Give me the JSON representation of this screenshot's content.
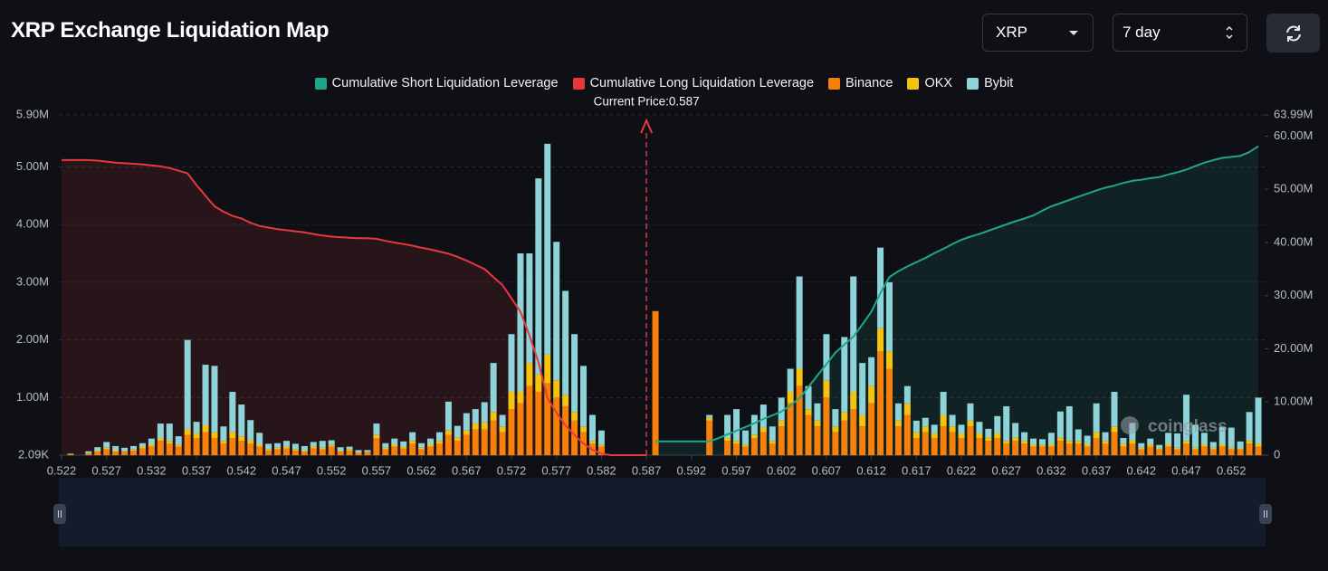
{
  "header": {
    "title": "XRP Exchange Liquidation Map",
    "symbol": "XRP",
    "period": "7 day"
  },
  "watermark": "coinglass",
  "chart_data": {
    "type": "bar",
    "x": [
      0.522,
      0.523,
      0.524,
      0.525,
      0.526,
      0.527,
      0.528,
      0.529,
      0.53,
      0.531,
      0.532,
      0.533,
      0.534,
      0.535,
      0.536,
      0.537,
      0.538,
      0.539,
      0.54,
      0.541,
      0.542,
      0.543,
      0.544,
      0.545,
      0.546,
      0.547,
      0.548,
      0.549,
      0.55,
      0.551,
      0.552,
      0.553,
      0.554,
      0.555,
      0.556,
      0.557,
      0.558,
      0.559,
      0.56,
      0.561,
      0.562,
      0.563,
      0.564,
      0.565,
      0.566,
      0.567,
      0.568,
      0.569,
      0.57,
      0.571,
      0.572,
      0.573,
      0.574,
      0.575,
      0.576,
      0.577,
      0.578,
      0.579,
      0.58,
      0.581,
      0.582,
      0.583,
      0.584,
      0.585,
      0.586,
      0.587,
      0.588,
      0.589,
      0.59,
      0.591,
      0.592,
      0.593,
      0.594,
      0.595,
      0.596,
      0.597,
      0.598,
      0.599,
      0.6,
      0.601,
      0.602,
      0.603,
      0.604,
      0.605,
      0.606,
      0.607,
      0.608,
      0.609,
      0.61,
      0.611,
      0.612,
      0.613,
      0.614,
      0.615,
      0.616,
      0.617,
      0.618,
      0.619,
      0.62,
      0.621,
      0.622,
      0.623,
      0.624,
      0.625,
      0.626,
      0.627,
      0.628,
      0.629,
      0.63,
      0.631,
      0.632,
      0.633,
      0.634,
      0.635,
      0.636,
      0.637,
      0.638,
      0.639,
      0.64,
      0.641,
      0.642,
      0.643,
      0.644,
      0.645,
      0.646,
      0.647,
      0.648,
      0.649,
      0.65,
      0.651,
      0.652,
      0.653,
      0.654,
      0.655
    ],
    "xlim": [
      0.522,
      0.6557
    ],
    "xticks": [
      0.522,
      0.527,
      0.532,
      0.537,
      0.542,
      0.547,
      0.552,
      0.557,
      0.562,
      0.567,
      0.572,
      0.577,
      0.582,
      0.587,
      0.592,
      0.597,
      0.602,
      0.607,
      0.612,
      0.617,
      0.622,
      0.627,
      0.632,
      0.637,
      0.642,
      0.647,
      0.652
    ],
    "ylim": [
      2090,
      5900000
    ],
    "yticks": [
      {
        "value": 2090,
        "label": "2.09K"
      },
      {
        "value": 1000000,
        "label": "1.00M"
      },
      {
        "value": 2000000,
        "label": "2.00M"
      },
      {
        "value": 3000000,
        "label": "3.00M"
      },
      {
        "value": 4000000,
        "label": "4.00M"
      },
      {
        "value": 5000000,
        "label": "5.00M"
      },
      {
        "value": 5900000,
        "label": "5.90M"
      }
    ],
    "y2lim": [
      0,
      63990000
    ],
    "y2ticks": [
      0,
      {
        "value": 10000000,
        "label": "10.00M"
      },
      {
        "value": 20000000,
        "label": "20.00M"
      },
      {
        "value": 30000000,
        "label": "30.00M"
      },
      {
        "value": 40000000,
        "label": "40.00M"
      },
      {
        "value": 50000000,
        "label": "50.00M"
      },
      {
        "value": 60000000,
        "label": "60.00M"
      },
      {
        "value": 63990000,
        "label": "63.99M"
      }
    ],
    "grid": true,
    "annotations": [
      {
        "text": "Current Price:0.587",
        "x": 0.587
      }
    ],
    "series": [
      {
        "name": "Cumulative Short Liquidation Leverage",
        "type": "line",
        "axis": "y2",
        "color": "#1fa58a",
        "values": [
          null,
          null,
          null,
          null,
          null,
          null,
          null,
          null,
          null,
          null,
          null,
          null,
          null,
          null,
          null,
          null,
          null,
          null,
          null,
          null,
          null,
          null,
          null,
          null,
          null,
          null,
          null,
          null,
          null,
          null,
          null,
          null,
          null,
          null,
          null,
          null,
          null,
          null,
          null,
          null,
          null,
          null,
          null,
          null,
          null,
          null,
          null,
          null,
          null,
          null,
          null,
          null,
          null,
          null,
          null,
          null,
          null,
          null,
          null,
          null,
          null,
          null,
          null,
          null,
          null,
          null,
          2600000,
          2600000,
          2600000,
          2600000,
          2600000,
          2600000,
          2600000,
          3200000,
          3900000,
          4600000,
          5300000,
          6000000,
          6800000,
          7500000,
          8200000,
          9400000,
          10700000,
          12800000,
          15000000,
          17100000,
          19300000,
          20800000,
          22300000,
          24600000,
          27000000,
          30500000,
          33500000,
          34600000,
          35500000,
          36300000,
          37100000,
          38000000,
          38800000,
          39700000,
          40500000,
          41100000,
          41600000,
          42200000,
          42800000,
          43400000,
          44000000,
          44500000,
          45100000,
          46000000,
          46800000,
          47400000,
          48000000,
          48600000,
          49200000,
          49800000,
          50300000,
          50700000,
          51200000,
          51600000,
          51800000,
          52100000,
          52300000,
          52800000,
          53200000,
          53700000,
          54400000,
          55000000,
          55500000,
          55900000,
          56100000,
          56300000,
          57000000,
          58100000
        ]
      },
      {
        "name": "Cumulative Long Liquidation Leverage",
        "type": "line",
        "axis": "y2",
        "color": "#e8383d",
        "values": [
          55500000,
          55500000,
          55500000,
          55500000,
          55400000,
          55200000,
          55000000,
          54900000,
          54800000,
          54700000,
          54500000,
          54300000,
          54000000,
          53500000,
          53000000,
          50800000,
          48800000,
          46800000,
          45800000,
          45000000,
          44500000,
          43700000,
          43100000,
          42800000,
          42500000,
          42300000,
          42100000,
          41900000,
          41600000,
          41300000,
          41100000,
          41000000,
          40900000,
          40800000,
          40800000,
          40700000,
          40300000,
          40000000,
          39700000,
          39400000,
          39000000,
          38700000,
          38300000,
          37900000,
          37300000,
          36600000,
          35800000,
          35000000,
          33500000,
          32000000,
          29500000,
          27000000,
          22500000,
          17500000,
          10700000,
          8000000,
          5600000,
          3800000,
          2200000,
          1000000,
          300000,
          0,
          0,
          0,
          0,
          0,
          null,
          null,
          null,
          null,
          null,
          null,
          null,
          null,
          null,
          null,
          null,
          null,
          null,
          null,
          null,
          null,
          null,
          null,
          null,
          null,
          null,
          null,
          null,
          null,
          null,
          null,
          null,
          null,
          null,
          null,
          null,
          null,
          null,
          null,
          null,
          null,
          null,
          null,
          null,
          null,
          null,
          null,
          null,
          null,
          null,
          null,
          null,
          null,
          null,
          null,
          null,
          null,
          null,
          null,
          null,
          null,
          null,
          null,
          null,
          null,
          null,
          null,
          null,
          null,
          null,
          null,
          null,
          null
        ]
      },
      {
        "name": "Binance",
        "type": "bar",
        "color": "#f7800a",
        "values": [
          0,
          20000,
          0,
          30000,
          60000,
          100000,
          60000,
          60000,
          80000,
          120000,
          150000,
          250000,
          200000,
          150000,
          350000,
          300000,
          400000,
          300000,
          200000,
          300000,
          250000,
          200000,
          150000,
          80000,
          100000,
          120000,
          80000,
          60000,
          120000,
          100000,
          150000,
          60000,
          80000,
          40000,
          50000,
          300000,
          100000,
          150000,
          120000,
          200000,
          100000,
          150000,
          200000,
          350000,
          250000,
          350000,
          450000,
          450000,
          600000,
          400000,
          800000,
          900000,
          1200000,
          1100000,
          1250000,
          1000000,
          850000,
          600000,
          400000,
          200000,
          150000,
          0,
          0,
          0,
          0,
          0,
          2500000,
          0,
          0,
          0,
          0,
          0,
          600000,
          0,
          250000,
          200000,
          150000,
          300000,
          400000,
          200000,
          500000,
          900000,
          1200000,
          700000,
          500000,
          1000000,
          400000,
          600000,
          800000,
          500000,
          900000,
          1800000,
          1500000,
          500000,
          700000,
          300000,
          400000,
          300000,
          500000,
          400000,
          300000,
          500000,
          300000,
          250000,
          300000,
          200000,
          250000,
          200000,
          150000,
          150000,
          150000,
          250000,
          200000,
          200000,
          150000,
          300000,
          200000,
          400000,
          150000,
          200000,
          100000,
          150000,
          100000,
          150000,
          100000,
          200000,
          100000,
          150000,
          100000,
          150000,
          100000,
          100000,
          200000,
          150000
        ]
      },
      {
        "name": "OKX",
        "type": "bar",
        "color": "#f5c20f",
        "values": [
          0,
          0,
          0,
          10000,
          20000,
          30000,
          20000,
          10000,
          20000,
          30000,
          40000,
          50000,
          50000,
          30000,
          100000,
          80000,
          120000,
          100000,
          50000,
          100000,
          80000,
          60000,
          40000,
          20000,
          30000,
          30000,
          20000,
          20000,
          30000,
          30000,
          30000,
          20000,
          20000,
          10000,
          10000,
          50000,
          30000,
          40000,
          30000,
          50000,
          30000,
          40000,
          50000,
          80000,
          60000,
          80000,
          100000,
          120000,
          150000,
          100000,
          300000,
          200000,
          400000,
          300000,
          500000,
          300000,
          200000,
          150000,
          100000,
          50000,
          30000,
          0,
          0,
          0,
          0,
          0,
          0,
          0,
          0,
          0,
          0,
          0,
          50000,
          0,
          50000,
          50000,
          30000,
          50000,
          80000,
          50000,
          100000,
          200000,
          300000,
          100000,
          100000,
          300000,
          100000,
          150000,
          300000,
          200000,
          300000,
          400000,
          300000,
          100000,
          200000,
          100000,
          100000,
          80000,
          200000,
          100000,
          80000,
          100000,
          80000,
          60000,
          80000,
          50000,
          60000,
          50000,
          40000,
          30000,
          40000,
          60000,
          50000,
          50000,
          40000,
          100000,
          50000,
          100000,
          50000,
          60000,
          30000,
          40000,
          20000,
          40000,
          30000,
          50000,
          30000,
          40000,
          30000,
          40000,
          30000,
          20000,
          50000,
          50000
        ]
      },
      {
        "name": "Bybit",
        "type": "bar",
        "color": "#8dd3d8",
        "values": [
          0,
          10000,
          0,
          30000,
          60000,
          100000,
          80000,
          60000,
          60000,
          60000,
          100000,
          250000,
          300000,
          150000,
          1550000,
          200000,
          1050000,
          1150000,
          250000,
          700000,
          550000,
          350000,
          200000,
          100000,
          80000,
          100000,
          100000,
          80000,
          80000,
          120000,
          80000,
          60000,
          50000,
          40000,
          30000,
          200000,
          80000,
          100000,
          90000,
          150000,
          80000,
          100000,
          150000,
          500000,
          200000,
          300000,
          250000,
          350000,
          850000,
          200000,
          1000000,
          2400000,
          1900000,
          3400000,
          3650000,
          2400000,
          1800000,
          1350000,
          1050000,
          450000,
          250000,
          0,
          0,
          0,
          0,
          0,
          0,
          0,
          0,
          0,
          0,
          0,
          50000,
          0,
          400000,
          550000,
          250000,
          350000,
          400000,
          250000,
          400000,
          400000,
          1600000,
          400000,
          300000,
          800000,
          300000,
          1300000,
          2000000,
          900000,
          500000,
          1400000,
          1200000,
          300000,
          300000,
          200000,
          150000,
          150000,
          400000,
          200000,
          150000,
          300000,
          200000,
          150000,
          300000,
          600000,
          250000,
          150000,
          100000,
          100000,
          200000,
          450000,
          600000,
          200000,
          150000,
          500000,
          150000,
          600000,
          100000,
          300000,
          80000,
          100000,
          60000,
          200000,
          250000,
          800000,
          400000,
          200000,
          100000,
          300000,
          350000,
          120000,
          500000,
          800000
        ]
      }
    ]
  }
}
